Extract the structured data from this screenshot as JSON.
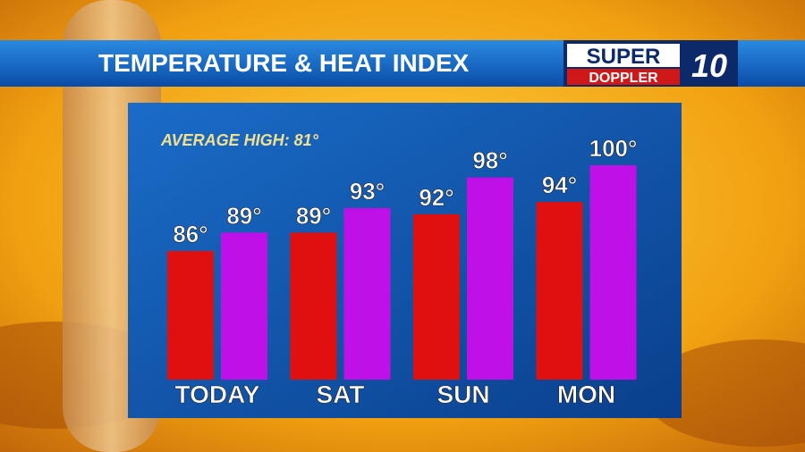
{
  "title": "TEMPERATURE & HEAT INDEX",
  "logo": {
    "line1": "SUPER",
    "line2": "DOPPLER",
    "number": "10"
  },
  "chart_data": {
    "type": "bar",
    "annotation": "AVERAGE HIGH: 81°",
    "categories": [
      "TODAY",
      "SAT",
      "SUN",
      "MON"
    ],
    "series": [
      {
        "color": "#e01010",
        "values": [
          86,
          89,
          92,
          94
        ],
        "value_labels": [
          "86°",
          "89°",
          "92°",
          "94°"
        ]
      },
      {
        "color": "#c010e8",
        "values": [
          89,
          93,
          98,
          100
        ],
        "value_labels": [
          "89°",
          "93°",
          "98°",
          "100°"
        ]
      }
    ],
    "ylim": [
      65,
      100
    ]
  }
}
